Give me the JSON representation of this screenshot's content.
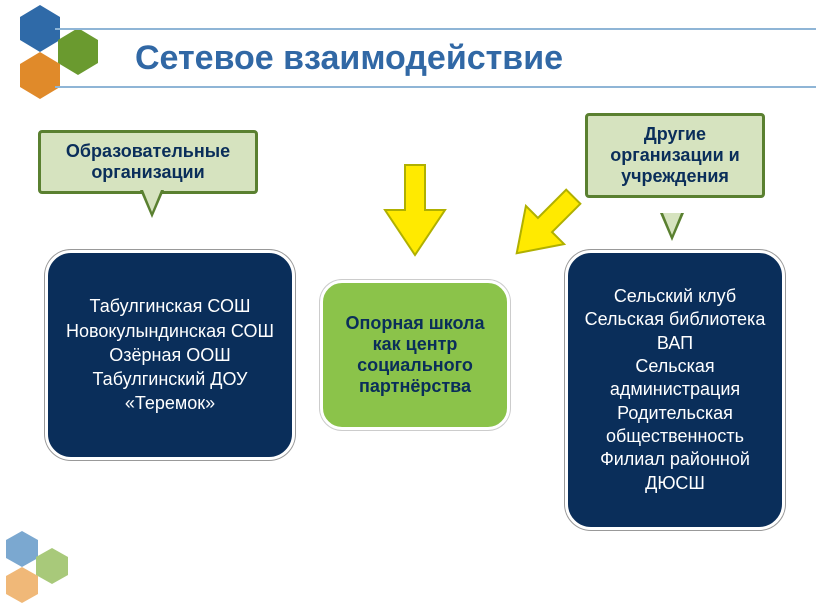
{
  "title": "Сетевое взаимодействие",
  "callouts": {
    "left": "Образовательные организации",
    "right": "Другие организации и учреждения"
  },
  "center": "Опорная школа как центр социального партнёрства",
  "left_box_lines": [
    "Табулгинская СОШ",
    "Новокулындинская СОШ",
    "Озёрная ООШ",
    "Табулгинский ДОУ «Теремок»"
  ],
  "right_box_lines": [
    "Сельский клуб",
    "Сельская библиотека",
    "ВАП",
    "Сельская администрация",
    "Родительская общественность",
    "Филиал районной ДЮСШ"
  ],
  "colors": {
    "title": "#3168a5",
    "title_border": "#8fb5d6",
    "callout_bg": "#d6e3bf",
    "callout_border": "#5a8030",
    "center_bg": "#8bc34a",
    "navy": "#0a2e5a",
    "arrow": "#ffea00",
    "arrow_border": "#b0b000",
    "hex_blue": "#2f6aa8",
    "hex_green": "#6a9a2f",
    "hex_orange": "#e08a2a",
    "hex_light_blue": "#7ba8d0",
    "hex_light_green": "#a8c97a",
    "hex_light_orange": "#f0b878"
  }
}
